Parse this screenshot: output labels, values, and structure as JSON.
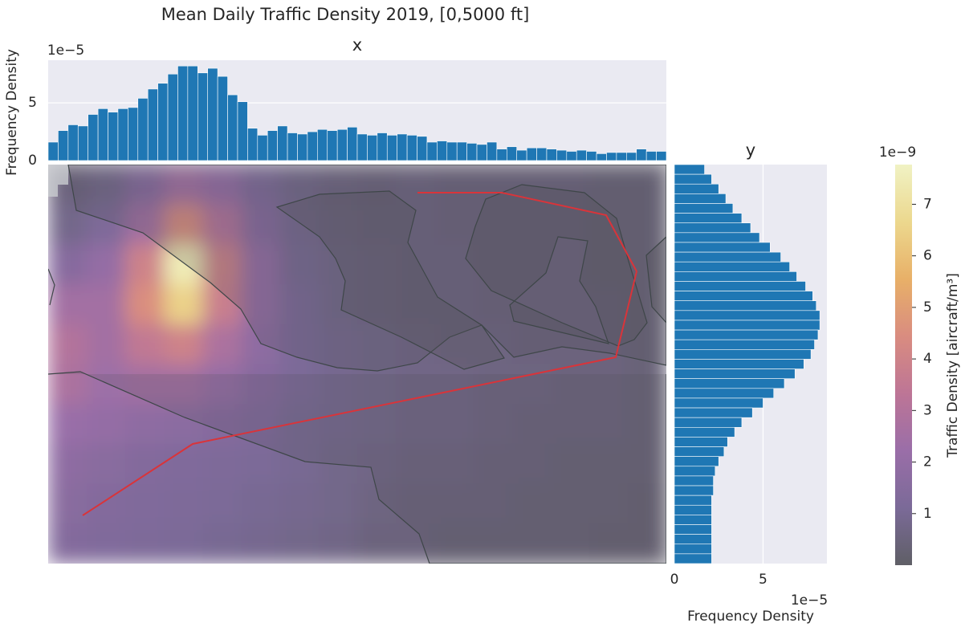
{
  "chart_data": [
    {
      "type": "heatmap",
      "title": "Mean Daily Traffic Density 2019, [0,5000 ft]",
      "values": [
        [
          0.5,
          0.8,
          1.5,
          2.5,
          2.0,
          1.2,
          0.8,
          0.6,
          0.5,
          0.6,
          0.5,
          0.5,
          0.5,
          0.5,
          0.4,
          0.4
        ],
        [
          0.8,
          1.2,
          2.5,
          4.5,
          3.0,
          1.5,
          0.9,
          0.7,
          0.6,
          0.6,
          0.5,
          0.5,
          0.5,
          0.5,
          0.4,
          0.4
        ],
        [
          1.5,
          2.0,
          4.0,
          7.5,
          4.0,
          2.0,
          1.0,
          0.8,
          0.7,
          0.6,
          0.6,
          0.5,
          0.5,
          0.5,
          0.4,
          0.4
        ],
        [
          2.5,
          2.5,
          4.5,
          6.5,
          3.8,
          2.0,
          1.1,
          0.8,
          0.7,
          0.6,
          0.6,
          0.5,
          0.5,
          0.5,
          0.5,
          0.4
        ],
        [
          3.0,
          2.5,
          3.5,
          4.0,
          2.8,
          1.8,
          1.1,
          0.9,
          0.8,
          0.7,
          0.6,
          0.6,
          0.5,
          0.5,
          0.5,
          0.4
        ],
        [
          2.8,
          2.3,
          2.5,
          2.5,
          2.0,
          1.5,
          1.1,
          0.9,
          0.8,
          0.7,
          0.7,
          0.6,
          0.6,
          0.5,
          0.5,
          0.4
        ],
        [
          2.2,
          2.0,
          1.8,
          1.7,
          1.5,
          1.3,
          1.0,
          0.9,
          0.8,
          0.7,
          0.7,
          0.6,
          0.5,
          0.5,
          0.5,
          0.4
        ],
        [
          1.8,
          1.6,
          1.4,
          1.3,
          1.2,
          1.1,
          1.0,
          0.8,
          0.7,
          0.6,
          0.6,
          0.5,
          0.5,
          0.4,
          0.4,
          0.4
        ],
        [
          1.6,
          1.4,
          1.3,
          1.2,
          1.1,
          1.0,
          0.9,
          0.8,
          0.6,
          0.5,
          0.5,
          0.5,
          0.4,
          0.4,
          0.4,
          0.3
        ],
        [
          1.4,
          1.3,
          1.2,
          1.1,
          1.0,
          0.9,
          0.8,
          0.7,
          0.5,
          0.5,
          0.4,
          0.4,
          0.4,
          0.4,
          0.3,
          0.3
        ]
      ],
      "colors": [
        "#5f5f66",
        "#7b6a98",
        "#9a6ea8",
        "#bd7596",
        "#d98c80",
        "#e8b068",
        "#ecd88e",
        "#f0f2c4"
      ],
      "colorbar": {
        "label": "Traffic Density [aircraft/m³]",
        "clim": [
          0,
          7.77
        ],
        "ticks": [
          1,
          2,
          3,
          4,
          5,
          6,
          7
        ],
        "scale_label": "1e−9"
      }
    },
    {
      "type": "bar",
      "title": "x",
      "ylabel": "Frequency Density",
      "scale_label": "1e−5",
      "color": "#1f77b4",
      "grid": true,
      "ylim": [
        0,
        8.7
      ],
      "yticks": [
        0,
        5
      ],
      "values": [
        1.6,
        2.6,
        3.1,
        3.0,
        4.0,
        4.5,
        4.2,
        4.5,
        4.6,
        5.4,
        6.2,
        6.7,
        7.5,
        8.2,
        8.2,
        7.6,
        8.0,
        7.3,
        5.7,
        5.1,
        2.8,
        2.2,
        2.6,
        3.0,
        2.4,
        2.3,
        2.5,
        2.7,
        2.6,
        2.7,
        2.9,
        2.3,
        2.2,
        2.4,
        2.2,
        2.3,
        2.2,
        2.1,
        1.6,
        1.7,
        1.6,
        1.6,
        1.5,
        1.4,
        1.6,
        1.0,
        1.2,
        0.9,
        1.1,
        1.1,
        1.0,
        0.9,
        0.8,
        0.9,
        0.8,
        0.6,
        0.7,
        0.7,
        0.7,
        1.0,
        0.8,
        0.8
      ]
    },
    {
      "type": "barh",
      "title": "y",
      "xlabel": "Frequency Density",
      "scale_label": "1e−5",
      "color": "#1f77b4",
      "grid": true,
      "xlim": [
        0,
        8.6
      ],
      "xticks": [
        0,
        5
      ],
      "values": [
        1.7,
        2.1,
        2.5,
        2.9,
        3.3,
        3.8,
        4.3,
        4.8,
        5.4,
        6.0,
        6.5,
        6.9,
        7.4,
        7.8,
        8.0,
        8.2,
        8.2,
        8.1,
        7.9,
        7.7,
        7.3,
        6.8,
        6.2,
        5.6,
        5.0,
        4.4,
        3.8,
        3.4,
        3.0,
        2.8,
        2.5,
        2.3,
        2.2,
        2.2,
        2.1,
        2.1,
        2.1,
        2.1,
        2.1,
        2.1,
        2.1
      ]
    }
  ]
}
